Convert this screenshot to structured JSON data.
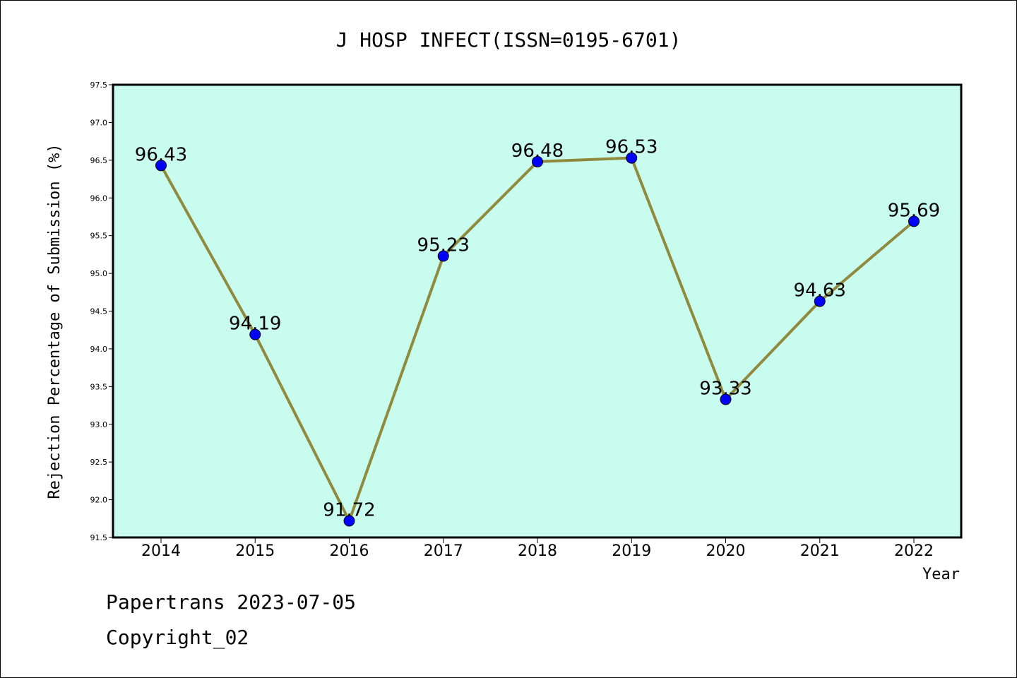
{
  "chart_data": {
    "type": "line",
    "title": "J HOSP INFECT(ISSN=0195-6701)",
    "xlabel": "Year",
    "ylabel": "Rejection Percentage of Submission (%)",
    "x": [
      "2014",
      "2015",
      "2016",
      "2017",
      "2018",
      "2019",
      "2020",
      "2021",
      "2022"
    ],
    "series": [
      {
        "values": [
          96.43,
          94.19,
          91.72,
          95.23,
          96.48,
          96.53,
          93.33,
          94.63,
          95.69
        ]
      }
    ],
    "data_labels": [
      "96.43",
      "94.19",
      "91.72",
      "95.23",
      "96.48",
      "96.53",
      "93.33",
      "94.63",
      "95.69"
    ],
    "ylim": [
      91.5,
      97.5
    ],
    "yticks": [
      "91.5",
      "92.0",
      "92.5",
      "93.0",
      "93.5",
      "94.0",
      "94.5",
      "95.0",
      "95.5",
      "96.0",
      "96.5",
      "97.0",
      "97.5"
    ],
    "grid": false,
    "legend": "none",
    "colors": {
      "plot_background": "#c8fcee",
      "line": "#8f8a3e",
      "marker": "#0000ff"
    }
  },
  "footer": {
    "line1": "Papertrans 2023-07-05",
    "line2": "Copyright_02"
  }
}
